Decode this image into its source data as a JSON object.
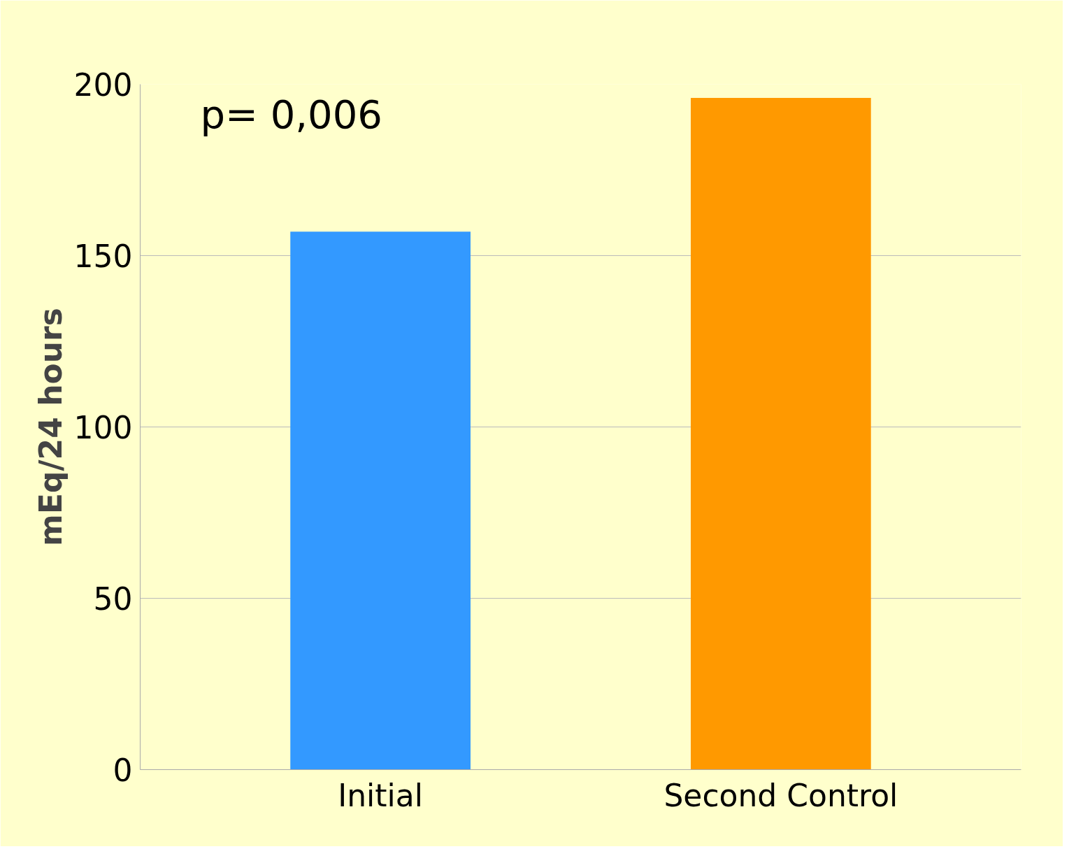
{
  "chart_data": {
    "type": "bar",
    "ylabel": "mEq/24 hours",
    "categories": [
      "Initial",
      "Second Control"
    ],
    "values": [
      157,
      196
    ],
    "colors": [
      "#3399ff",
      "#ff9900"
    ],
    "ylim": [
      0,
      200
    ],
    "yticks": [
      0,
      50,
      100,
      150,
      200
    ],
    "grid": "y",
    "annotations": [
      "p= 0,006"
    ]
  }
}
